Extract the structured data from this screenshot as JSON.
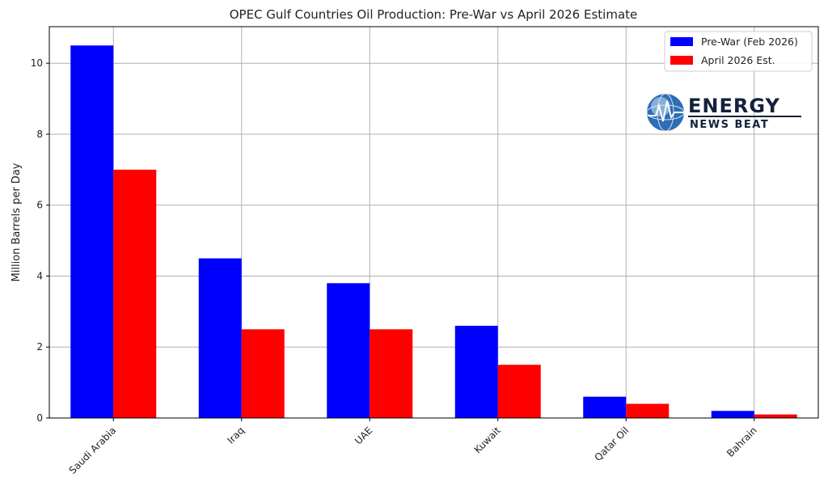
{
  "chart_data": {
    "type": "bar",
    "title": "OPEC Gulf Countries Oil Production: Pre-War vs April 2026 Estimate",
    "xlabel": "",
    "ylabel": "Million Barrels per Day",
    "categories": [
      "Saudi Arabia",
      "Iraq",
      "UAE",
      "Kuwait",
      "Qatar Oil",
      "Bahrain"
    ],
    "series": [
      {
        "name": "Pre-War (Feb 2026)",
        "color": "#0000ff",
        "values": [
          10.5,
          4.5,
          3.8,
          2.6,
          0.6,
          0.2
        ]
      },
      {
        "name": "April 2026 Est.",
        "color": "#ff0000",
        "values": [
          7.0,
          2.5,
          2.5,
          1.5,
          0.4,
          0.1
        ]
      }
    ],
    "ylim": [
      0,
      11.03
    ],
    "yticks": [
      "0",
      "2",
      "4",
      "6",
      "8",
      "10"
    ],
    "grid": true,
    "legend_position": "top-right"
  },
  "logo": {
    "line1": "ENERGY",
    "line2": "NEWS BEAT",
    "icon": "globe-icon",
    "colors": {
      "navy": "#14213d",
      "globe": "#2f6db5",
      "globe_light": "#cfe3f7"
    }
  }
}
